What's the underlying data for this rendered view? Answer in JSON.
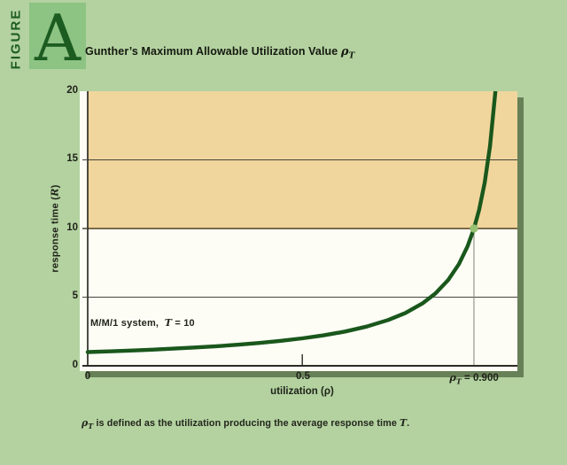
{
  "figure_label": {
    "word": "FIGURE",
    "letter": "A"
  },
  "title": {
    "text": "Gunther’s Maximum Allowable Utilization Value ",
    "symbol": "ρ",
    "symbol_sub": "T"
  },
  "colors": {
    "page_background": "#b3d2a0",
    "figure_box": "#8dc383",
    "dark_green": "#1c5c21",
    "plot_background": "#fdfdf6",
    "overload_region": "#f0d69d",
    "curve": "#1a571c",
    "marker": "#96c272",
    "gridline": "#45453a",
    "axis": "#2c2c24",
    "threshold_line": "#8d8d80"
  },
  "chart_data": {
    "type": "line",
    "xlabel": "utilization (ρ)",
    "ylabel": "response time (R)",
    "xlim": [
      0,
      1.0
    ],
    "ylim": [
      0,
      20
    ],
    "y_ticks": [
      0,
      5,
      10,
      15,
      20
    ],
    "y_tick_labels": [
      "20",
      "15",
      "10",
      "5",
      "0"
    ],
    "x_ticks": [
      0,
      0.5,
      0.9
    ],
    "x_tick_labels": [
      "0",
      "0.5"
    ],
    "rho_label": {
      "sym": "ρ",
      "sub": "T",
      "rest": " = 0.900"
    },
    "gridlines_y": [
      5,
      15
    ],
    "shaded_region": {
      "y_from": 10,
      "y_to": 20,
      "color": "#f0d69d"
    },
    "threshold": {
      "rho": 0.9,
      "R": 10,
      "marker_color": "#96c272"
    },
    "annotation": {
      "system": "M/M/1 system,",
      "var": "T",
      "value": " = 10"
    },
    "series": [
      {
        "name": "M/M/1 response time R = 1/(1-ρ)",
        "color": "#1a571c",
        "x": [
          0,
          0.05,
          0.1,
          0.15,
          0.2,
          0.25,
          0.3,
          0.35,
          0.4,
          0.45,
          0.5,
          0.55,
          0.6,
          0.65,
          0.7,
          0.74,
          0.78,
          0.81,
          0.84,
          0.865,
          0.885,
          0.9,
          0.912,
          0.925,
          0.9375,
          0.95,
          0.9565
        ],
        "y": [
          1,
          1.053,
          1.111,
          1.176,
          1.25,
          1.333,
          1.429,
          1.538,
          1.667,
          1.818,
          2,
          2.222,
          2.5,
          2.857,
          3.333,
          3.846,
          4.545,
          5.263,
          6.25,
          7.407,
          8.696,
          10,
          11.364,
          13.333,
          16,
          20,
          23
        ]
      }
    ]
  },
  "caption": {
    "sym": "ρ",
    "sub": "T",
    "text": " is defined as the utilization producing the average response time ",
    "var": "T",
    "period": "."
  }
}
